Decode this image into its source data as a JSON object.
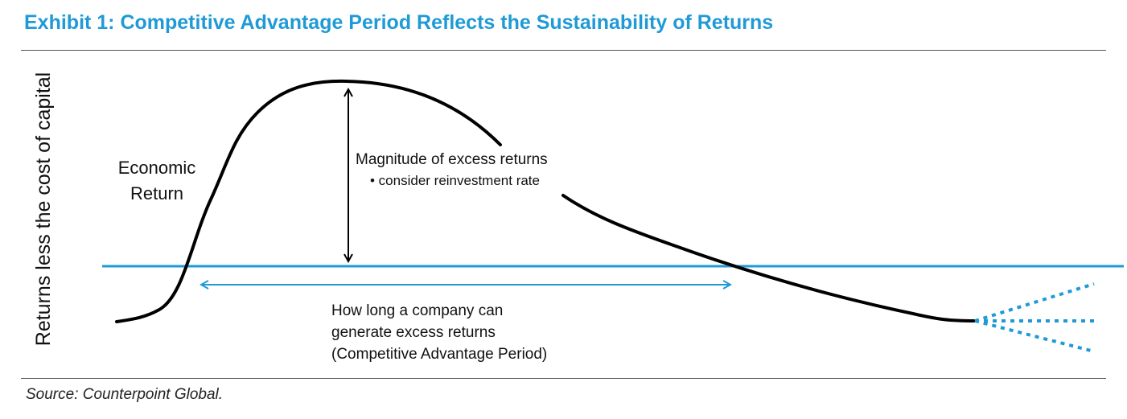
{
  "header": {
    "title": "Exhibit 1: Competitive Advantage Period Reflects the Sustainability of Returns"
  },
  "diagram": {
    "y_axis_label": "Returns less the cost of capital",
    "curve_label_line1": "Economic",
    "curve_label_line2": "Return",
    "magnitude_label": "Magnitude of excess returns",
    "magnitude_bullet": "• consider reinvestment rate",
    "period_label_line1": "How long a company can",
    "period_label_line2": "generate excess returns",
    "period_label_line3": "(Competitive Advantage Period)",
    "colors": {
      "accent": "#1f9ad6",
      "curve": "#000000"
    }
  },
  "footer": {
    "source": "Source: Counterpoint Global."
  }
}
